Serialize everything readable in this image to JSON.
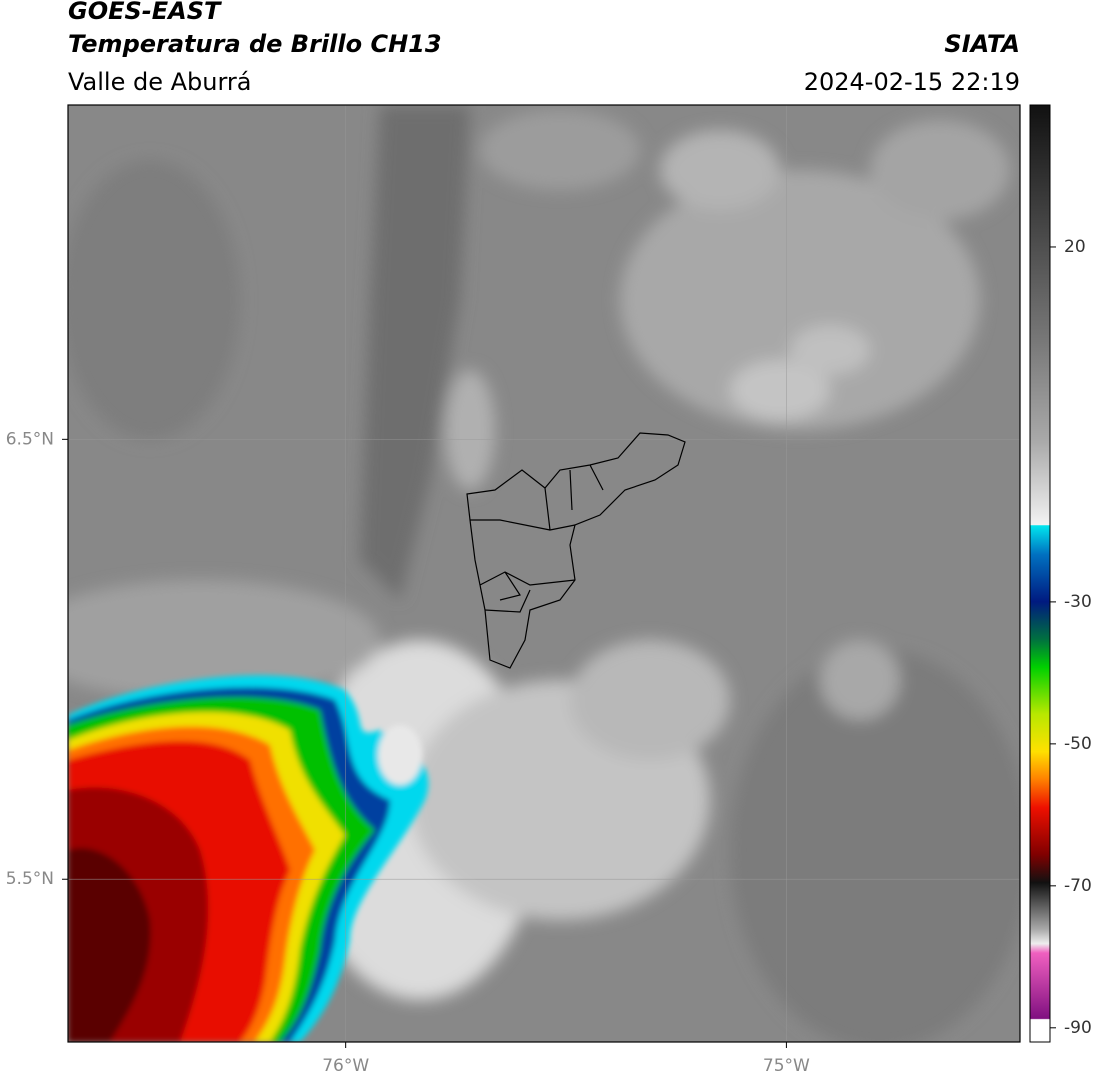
{
  "header": {
    "title": "GOES-EAST",
    "subtitle": "Temperatura de Brillo CH13",
    "region": "Valle de Aburrá",
    "source": "SIATA",
    "datetime": "2024-02-15 22:19"
  },
  "map": {
    "xlim": [
      -76.63,
      -74.47
    ],
    "ylim": [
      5.13,
      7.26
    ],
    "xticks": [
      {
        "value": -76,
        "label": "76°W"
      },
      {
        "value": -75,
        "label": "75°W"
      }
    ],
    "yticks": [
      {
        "value": 6.5,
        "label": "6.5°N"
      },
      {
        "value": 5.5,
        "label": "5.5°N"
      }
    ],
    "grid": true
  },
  "colorbar": {
    "lim": [
      -92,
      40
    ],
    "ticks": [
      20,
      -30,
      -50,
      -70,
      -90
    ]
  }
}
